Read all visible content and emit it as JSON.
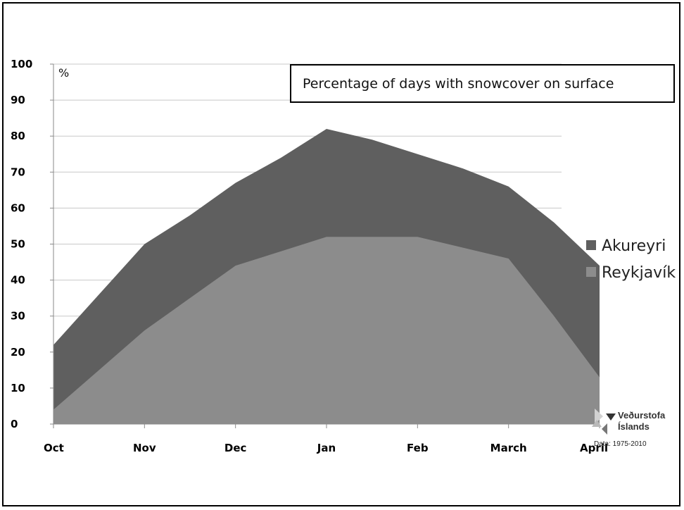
{
  "chart_data": {
    "type": "area",
    "title": "Percentage of days with snowcover on  surface",
    "ylabel": "%",
    "xlabel": "",
    "categories": [
      "Oct",
      "Nov",
      "Dec",
      "Jan",
      "Feb",
      "March",
      "April"
    ],
    "x": [
      0,
      1,
      2,
      3,
      4,
      5,
      6
    ],
    "ylim": [
      0,
      100
    ],
    "yticks": [
      0,
      10,
      20,
      30,
      40,
      50,
      60,
      70,
      80,
      90,
      100
    ],
    "grid": true,
    "legend_position": "right",
    "series": [
      {
        "name": "Akureyri",
        "color": "#5f5f5f",
        "x": [
          0,
          0.5,
          1,
          1.5,
          2,
          2.5,
          3,
          3.5,
          4,
          4.5,
          5,
          5.5,
          6
        ],
        "values": [
          22,
          36,
          50,
          58,
          67,
          74,
          82,
          79,
          75,
          71,
          66,
          56,
          44
        ]
      },
      {
        "name": "Reykjavík",
        "color": "#8c8c8c",
        "x": [
          0,
          0.5,
          1,
          1.5,
          2,
          2.5,
          3,
          3.5,
          4,
          4.5,
          5,
          5.5,
          6
        ],
        "values": [
          4,
          15,
          26,
          35,
          44,
          48,
          52,
          52,
          52,
          49,
          46,
          30,
          13
        ]
      }
    ]
  },
  "logo": {
    "line1": "Veðurstofa",
    "line2": "Íslands"
  },
  "source_note": "Data: 1975-2010"
}
